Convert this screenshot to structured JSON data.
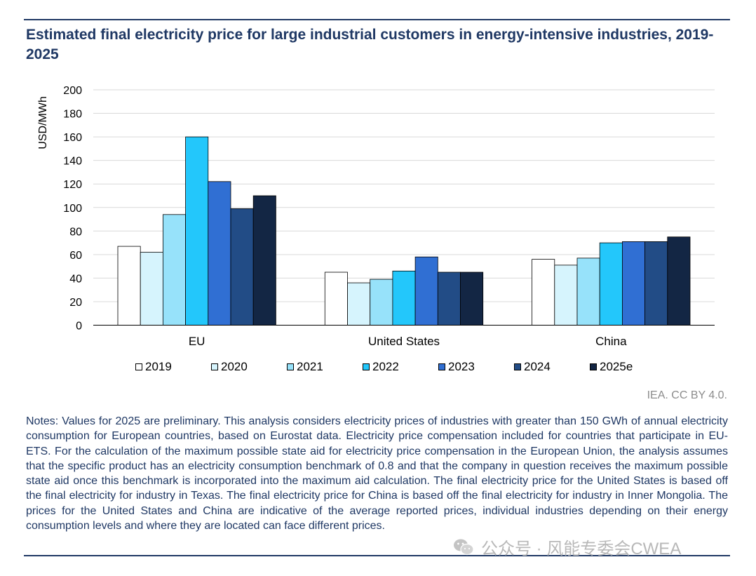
{
  "title": "Estimated final electricity price for large industrial customers in energy-intensive industries, 2019-2025",
  "credit": "IEA. CC BY 4.0.",
  "notes": "Notes: Values for 2025 are preliminary. This analysis considers electricity prices of industries with greater than 150 GWh of annual electricity consumption for European countries, based on Eurostat data. Electricity price compensation included for countries that participate in EU-ETS. For the calculation of the maximum possible state aid for electricity price compensation in the European Union, the analysis assumes that the specific product has an electricity consumption benchmark of 0.8 and that the company in question receives the maximum possible state aid once this benchmark is incorporated into the maximum aid calculation. The final electricity price for the United States is based off the final electricity for industry in Texas. The final electricity price for China is based off the final electricity for industry in Inner Mongolia. The prices for the United States and China are indicative of the average reported prices, individual industries depending on their energy consumption levels and where they are located can face different prices.",
  "watermark": {
    "icon": "wechat-icon",
    "text": "公众号 · 风能专委会CWEA"
  },
  "chart_data": {
    "type": "bar",
    "title": "Estimated final electricity price for large industrial customers in energy-intensive industries, 2019-2025",
    "xlabel": "",
    "ylabel": "USD/MWh",
    "ylim": [
      0,
      200
    ],
    "yticks": [
      0,
      20,
      40,
      60,
      80,
      100,
      120,
      140,
      160,
      180,
      200
    ],
    "grid": true,
    "legend_position": "bottom",
    "categories": [
      "EU",
      "United States",
      "China"
    ],
    "series": [
      {
        "name": "2019",
        "color": "#ffffff",
        "values": [
          67,
          45,
          56
        ]
      },
      {
        "name": "2020",
        "color": "#d6f4fd",
        "values": [
          62,
          36,
          51
        ]
      },
      {
        "name": "2021",
        "color": "#97e2fa",
        "values": [
          94,
          39,
          57
        ]
      },
      {
        "name": "2022",
        "color": "#23c7fb",
        "values": [
          160,
          46,
          70
        ]
      },
      {
        "name": "2023",
        "color": "#306fd3",
        "values": [
          122,
          58,
          71
        ]
      },
      {
        "name": "2024",
        "color": "#224c86",
        "values": [
          99,
          45,
          71
        ]
      },
      {
        "name": "2025e",
        "color": "#132644",
        "values": [
          110,
          45,
          75
        ]
      }
    ]
  }
}
